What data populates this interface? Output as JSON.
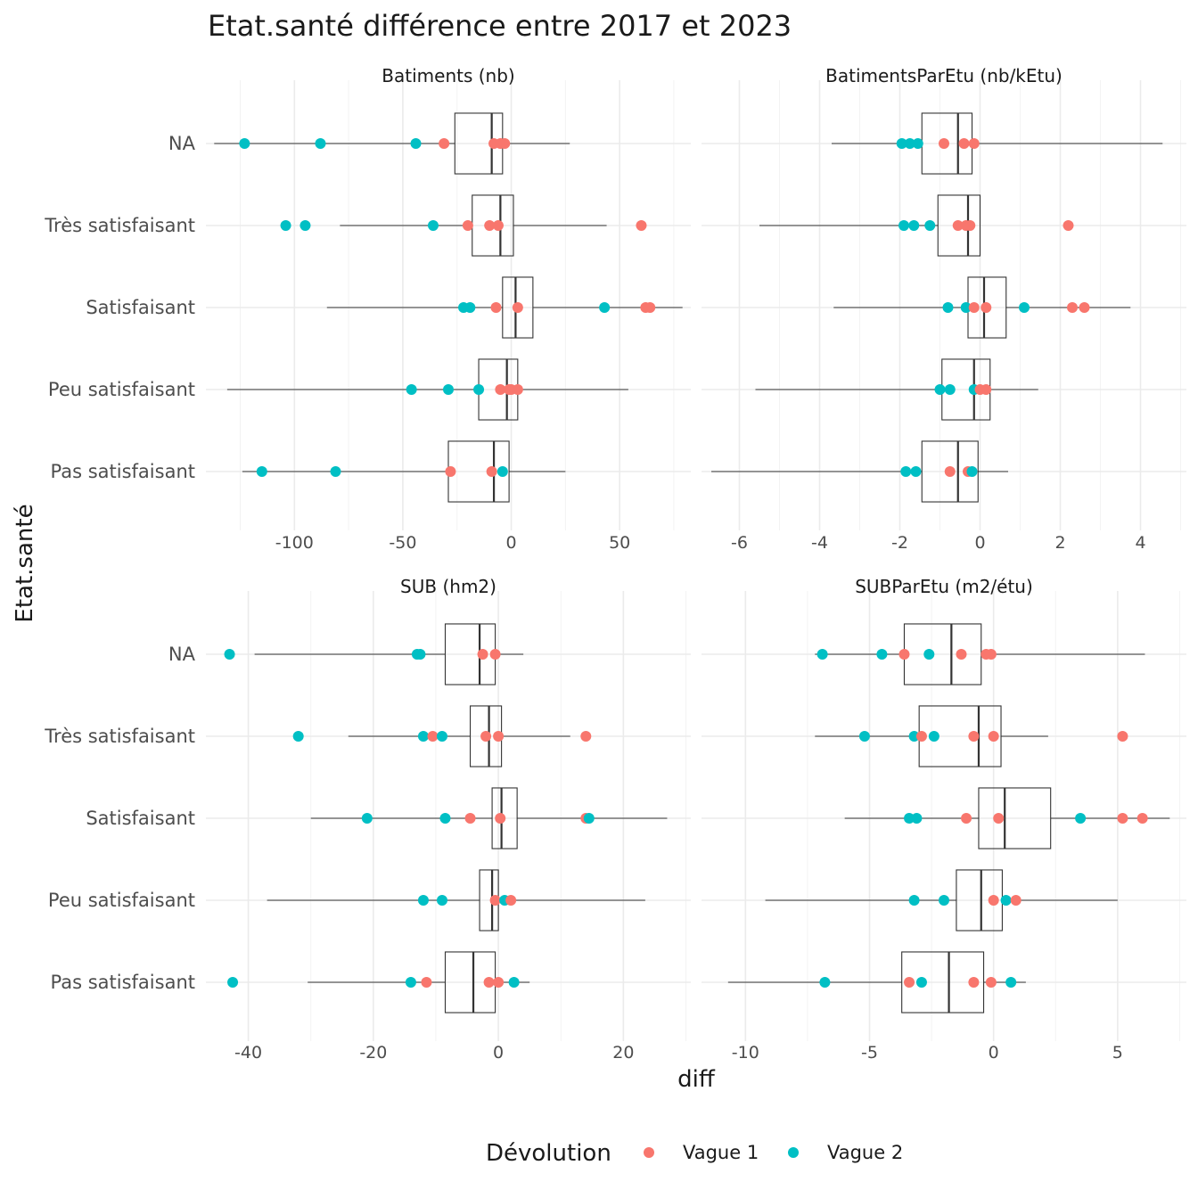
{
  "title": "Etat.santé différence entre 2017 et 2023",
  "xlabel": "diff",
  "ylabel": "Etat.santé",
  "legend": {
    "title": "Dévolution",
    "items": [
      {
        "label": "Vague 1",
        "color": "#F8766D"
      },
      {
        "label": "Vague 2",
        "color": "#00BFC4"
      }
    ]
  },
  "chart_data": {
    "type": "boxplot",
    "categories": [
      "NA",
      "Très satisfaisant",
      "Satisfaisant",
      "Peu satisfaisant",
      "Pas satisfaisant"
    ],
    "series_colors": {
      "Vague 1": "#F8766D",
      "Vague 2": "#00BFC4"
    },
    "panels": [
      {
        "name": "Batiments (nb)",
        "xlim": [
          -140,
          82
        ],
        "xticks": [
          -100,
          -50,
          0,
          50
        ],
        "groups": [
          {
            "category": "NA",
            "whisker": [
              -137,
              27
            ],
            "box": [
              -26,
              -4
            ],
            "median": -9,
            "points": [
              {
                "x": -123,
                "s": "Vague 2"
              },
              {
                "x": -88,
                "s": "Vague 2"
              },
              {
                "x": -44,
                "s": "Vague 2"
              },
              {
                "x": -31,
                "s": "Vague 1"
              },
              {
                "x": -8,
                "s": "Vague 1"
              },
              {
                "x": -5,
                "s": "Vague 1"
              },
              {
                "x": -3,
                "s": "Vague 1"
              }
            ]
          },
          {
            "category": "Très satisfaisant",
            "whisker": [
              -79,
              44
            ],
            "box": [
              -18,
              1
            ],
            "median": -5,
            "points": [
              {
                "x": -104,
                "s": "Vague 2"
              },
              {
                "x": -95,
                "s": "Vague 2"
              },
              {
                "x": -36,
                "s": "Vague 2"
              },
              {
                "x": -20,
                "s": "Vague 1"
              },
              {
                "x": -10,
                "s": "Vague 1"
              },
              {
                "x": -6,
                "s": "Vague 1"
              },
              {
                "x": 60,
                "s": "Vague 1"
              }
            ]
          },
          {
            "category": "Satisfaisant",
            "whisker": [
              -85,
              79
            ],
            "box": [
              -4,
              10
            ],
            "median": 2,
            "points": [
              {
                "x": -22,
                "s": "Vague 2"
              },
              {
                "x": -19,
                "s": "Vague 2"
              },
              {
                "x": -7,
                "s": "Vague 1"
              },
              {
                "x": 3,
                "s": "Vague 1"
              },
              {
                "x": 43,
                "s": "Vague 2"
              },
              {
                "x": 62,
                "s": "Vague 1"
              },
              {
                "x": 64,
                "s": "Vague 1"
              }
            ]
          },
          {
            "category": "Peu satisfaisant",
            "whisker": [
              -131,
              54
            ],
            "box": [
              -15,
              3
            ],
            "median": -2,
            "points": [
              {
                "x": -46,
                "s": "Vague 2"
              },
              {
                "x": -29,
                "s": "Vague 2"
              },
              {
                "x": -15,
                "s": "Vague 2"
              },
              {
                "x": -5,
                "s": "Vague 1"
              },
              {
                "x": -1,
                "s": "Vague 1"
              },
              {
                "x": 0,
                "s": "Vague 1"
              },
              {
                "x": 3,
                "s": "Vague 1"
              }
            ]
          },
          {
            "category": "Pas satisfaisant",
            "whisker": [
              -124,
              25
            ],
            "box": [
              -29,
              -1
            ],
            "median": -8,
            "points": [
              {
                "x": -115,
                "s": "Vague 2"
              },
              {
                "x": -81,
                "s": "Vague 2"
              },
              {
                "x": -28,
                "s": "Vague 1"
              },
              {
                "x": -9,
                "s": "Vague 1"
              },
              {
                "x": -4,
                "s": "Vague 2"
              }
            ]
          }
        ]
      },
      {
        "name": "BatimentsParEtu (nb/kEtu)",
        "xlim": [
          -6.9,
          5.1
        ],
        "xticks": [
          -6,
          -4,
          -2,
          0,
          2,
          4
        ],
        "groups": [
          {
            "category": "NA",
            "whisker": [
              -3.7,
              4.55
            ],
            "box": [
              -1.45,
              -0.2
            ],
            "median": -0.55,
            "points": [
              {
                "x": -1.95,
                "s": "Vague 2"
              },
              {
                "x": -1.75,
                "s": "Vague 2"
              },
              {
                "x": -1.55,
                "s": "Vague 2"
              },
              {
                "x": -0.9,
                "s": "Vague 1"
              },
              {
                "x": -0.4,
                "s": "Vague 1"
              },
              {
                "x": -0.15,
                "s": "Vague 1"
              }
            ]
          },
          {
            "category": "Très satisfaisant",
            "whisker": [
              -5.5,
              0.0
            ],
            "box": [
              -1.05,
              0.0
            ],
            "median": -0.3,
            "points": [
              {
                "x": -1.9,
                "s": "Vague 2"
              },
              {
                "x": -1.65,
                "s": "Vague 2"
              },
              {
                "x": -1.25,
                "s": "Vague 2"
              },
              {
                "x": -0.55,
                "s": "Vague 1"
              },
              {
                "x": -0.35,
                "s": "Vague 1"
              },
              {
                "x": -0.25,
                "s": "Vague 1"
              },
              {
                "x": 2.2,
                "s": "Vague 1"
              }
            ]
          },
          {
            "category": "Satisfaisant",
            "whisker": [
              -3.65,
              3.75
            ],
            "box": [
              -0.3,
              0.65
            ],
            "median": 0.1,
            "points": [
              {
                "x": -0.8,
                "s": "Vague 2"
              },
              {
                "x": -0.35,
                "s": "Vague 2"
              },
              {
                "x": -0.15,
                "s": "Vague 1"
              },
              {
                "x": 0.15,
                "s": "Vague 1"
              },
              {
                "x": 1.1,
                "s": "Vague 2"
              },
              {
                "x": 2.3,
                "s": "Vague 1"
              },
              {
                "x": 2.6,
                "s": "Vague 1"
              }
            ]
          },
          {
            "category": "Peu satisfaisant",
            "whisker": [
              -5.6,
              1.45
            ],
            "box": [
              -0.95,
              0.25
            ],
            "median": -0.15,
            "points": [
              {
                "x": -1.0,
                "s": "Vague 2"
              },
              {
                "x": -0.75,
                "s": "Vague 2"
              },
              {
                "x": -0.15,
                "s": "Vague 2"
              },
              {
                "x": 0.0,
                "s": "Vague 1"
              },
              {
                "x": 0.15,
                "s": "Vague 1"
              }
            ]
          },
          {
            "category": "Pas satisfaisant",
            "whisker": [
              -6.7,
              0.7
            ],
            "box": [
              -1.45,
              -0.05
            ],
            "median": -0.55,
            "points": [
              {
                "x": -1.85,
                "s": "Vague 2"
              },
              {
                "x": -1.6,
                "s": "Vague 2"
              },
              {
                "x": -0.75,
                "s": "Vague 1"
              },
              {
                "x": -0.3,
                "s": "Vague 1"
              },
              {
                "x": -0.2,
                "s": "Vague 2"
              }
            ]
          }
        ]
      },
      {
        "name": "SUB (hm2)",
        "xlim": [
          -46.5,
          30.5
        ],
        "xticks": [
          -40,
          -20,
          0,
          20
        ],
        "groups": [
          {
            "category": "NA",
            "whisker": [
              -39,
              4
            ],
            "box": [
              -8.5,
              -0.5
            ],
            "median": -3,
            "points": [
              {
                "x": -43,
                "s": "Vague 2"
              },
              {
                "x": -13,
                "s": "Vague 2"
              },
              {
                "x": -12.5,
                "s": "Vague 2"
              },
              {
                "x": -2.5,
                "s": "Vague 1"
              },
              {
                "x": -0.5,
                "s": "Vague 1"
              }
            ]
          },
          {
            "category": "Très satisfaisant",
            "whisker": [
              -24,
              11.5
            ],
            "box": [
              -4.5,
              0.5
            ],
            "median": -1.5,
            "points": [
              {
                "x": -32,
                "s": "Vague 2"
              },
              {
                "x": -12,
                "s": "Vague 2"
              },
              {
                "x": -10.5,
                "s": "Vague 1"
              },
              {
                "x": -9,
                "s": "Vague 2"
              },
              {
                "x": -2,
                "s": "Vague 1"
              },
              {
                "x": 0,
                "s": "Vague 1"
              },
              {
                "x": 14,
                "s": "Vague 1"
              }
            ]
          },
          {
            "category": "Satisfaisant",
            "whisker": [
              -30,
              27
            ],
            "box": [
              -1,
              3
            ],
            "median": 0.5,
            "points": [
              {
                "x": -21,
                "s": "Vague 2"
              },
              {
                "x": -8.5,
                "s": "Vague 2"
              },
              {
                "x": -4.5,
                "s": "Vague 1"
              },
              {
                "x": 0.3,
                "s": "Vague 1"
              },
              {
                "x": 14,
                "s": "Vague 1"
              },
              {
                "x": 14.5,
                "s": "Vague 2"
              }
            ]
          },
          {
            "category": "Peu satisfaisant",
            "whisker": [
              -37,
              23.5
            ],
            "box": [
              -3,
              0
            ],
            "median": -1,
            "points": [
              {
                "x": -12,
                "s": "Vague 2"
              },
              {
                "x": -9,
                "s": "Vague 2"
              },
              {
                "x": -0.5,
                "s": "Vague 1"
              },
              {
                "x": 1,
                "s": "Vague 2"
              },
              {
                "x": 2,
                "s": "Vague 1"
              }
            ]
          },
          {
            "category": "Pas satisfaisant",
            "whisker": [
              -30.5,
              5
            ],
            "box": [
              -8.5,
              -0.5
            ],
            "median": -4,
            "points": [
              {
                "x": -42.5,
                "s": "Vague 2"
              },
              {
                "x": -14,
                "s": "Vague 2"
              },
              {
                "x": -11.5,
                "s": "Vague 1"
              },
              {
                "x": -1.5,
                "s": "Vague 1"
              },
              {
                "x": 0,
                "s": "Vague 1"
              },
              {
                "x": 2.5,
                "s": "Vague 2"
              }
            ]
          }
        ]
      },
      {
        "name": "SUBParEtu (m2/étu)",
        "xlim": [
          -11.7,
          7.7
        ],
        "xticks": [
          -10,
          -5,
          0,
          5
        ],
        "groups": [
          {
            "category": "NA",
            "whisker": [
              -7.2,
              6.1
            ],
            "box": [
              -3.6,
              -0.5
            ],
            "median": -1.7,
            "points": [
              {
                "x": -6.9,
                "s": "Vague 2"
              },
              {
                "x": -4.5,
                "s": "Vague 2"
              },
              {
                "x": -3.6,
                "s": "Vague 1"
              },
              {
                "x": -2.6,
                "s": "Vague 2"
              },
              {
                "x": -1.3,
                "s": "Vague 1"
              },
              {
                "x": -0.3,
                "s": "Vague 1"
              },
              {
                "x": -0.1,
                "s": "Vague 1"
              }
            ]
          },
          {
            "category": "Très satisfaisant",
            "whisker": [
              -7.2,
              2.2
            ],
            "box": [
              -3.0,
              0.3
            ],
            "median": -0.6,
            "points": [
              {
                "x": -5.2,
                "s": "Vague 2"
              },
              {
                "x": -3.2,
                "s": "Vague 2"
              },
              {
                "x": -2.9,
                "s": "Vague 1"
              },
              {
                "x": -2.4,
                "s": "Vague 2"
              },
              {
                "x": -0.8,
                "s": "Vague 1"
              },
              {
                "x": 0.0,
                "s": "Vague 1"
              },
              {
                "x": 5.2,
                "s": "Vague 1"
              }
            ]
          },
          {
            "category": "Satisfaisant",
            "whisker": [
              -6.0,
              7.1
            ],
            "box": [
              -0.6,
              2.3
            ],
            "median": 0.45,
            "points": [
              {
                "x": -3.4,
                "s": "Vague 2"
              },
              {
                "x": -3.1,
                "s": "Vague 2"
              },
              {
                "x": -1.1,
                "s": "Vague 1"
              },
              {
                "x": 0.2,
                "s": "Vague 1"
              },
              {
                "x": 3.5,
                "s": "Vague 2"
              },
              {
                "x": 5.2,
                "s": "Vague 1"
              },
              {
                "x": 6.0,
                "s": "Vague 1"
              }
            ]
          },
          {
            "category": "Peu satisfaisant",
            "whisker": [
              -9.2,
              5.0
            ],
            "box": [
              -1.5,
              0.35
            ],
            "median": -0.5,
            "points": [
              {
                "x": -3.2,
                "s": "Vague 2"
              },
              {
                "x": -2.0,
                "s": "Vague 2"
              },
              {
                "x": 0.0,
                "s": "Vague 1"
              },
              {
                "x": 0.5,
                "s": "Vague 2"
              },
              {
                "x": 0.9,
                "s": "Vague 1"
              }
            ]
          },
          {
            "category": "Pas satisfaisant",
            "whisker": [
              -10.7,
              1.3
            ],
            "box": [
              -3.7,
              -0.4
            ],
            "median": -1.8,
            "points": [
              {
                "x": -6.8,
                "s": "Vague 2"
              },
              {
                "x": -3.4,
                "s": "Vague 1"
              },
              {
                "x": -2.9,
                "s": "Vague 2"
              },
              {
                "x": -0.8,
                "s": "Vague 1"
              },
              {
                "x": -0.1,
                "s": "Vague 1"
              },
              {
                "x": 0.7,
                "s": "Vague 2"
              }
            ]
          }
        ]
      }
    ]
  }
}
